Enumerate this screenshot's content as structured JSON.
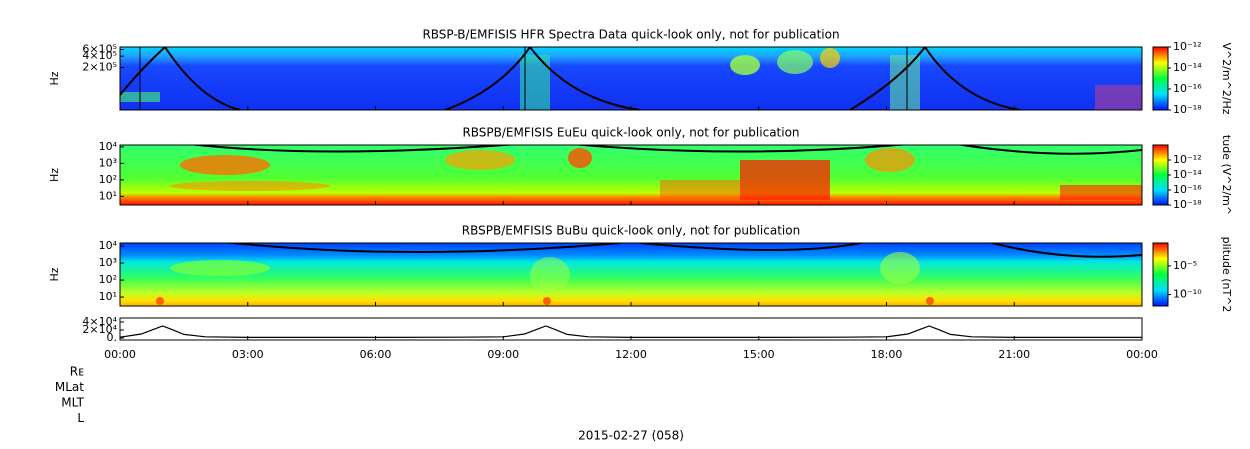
{
  "chart_data": [
    {
      "type": "spectrogram",
      "title": "RBSP-B/EMFISIS  HFR Spectra Data quick-look only, not for publication",
      "ylabel": "Hz",
      "log_y": true,
      "ylim": [
        15000,
        700000
      ],
      "yticks": [
        {
          "value": 200000,
          "label": "2×10⁵"
        },
        {
          "value": 400000,
          "label": "4×10⁵"
        },
        {
          "value": 600000,
          "label": "6×10⁵"
        }
      ],
      "zlabel": "V^2/m^2/Hz",
      "zlim": [
        1e-18,
        1e-12
      ],
      "zticks": [
        {
          "value": 1e-12,
          "label": "10⁻¹²"
        },
        {
          "value": 1e-14,
          "label": "10⁻¹⁴"
        },
        {
          "value": 1e-16,
          "label": "10⁻¹⁶"
        },
        {
          "value": 1e-18,
          "label": "10⁻¹⁸"
        }
      ],
      "colormap": [
        "#0010ff",
        "#00e0ff",
        "#00ff40",
        "#ffff00",
        "#ff0000"
      ]
    },
    {
      "type": "spectrogram",
      "title": "RBSPB/EMFISIS  EuEu quick-look only, not for publication",
      "ylabel": "Hz",
      "log_y": true,
      "ylim": [
        3,
        13000
      ],
      "yticks": [
        {
          "value": 10,
          "label": "10¹"
        },
        {
          "value": 100,
          "label": "10²"
        },
        {
          "value": 1000,
          "label": "10³"
        },
        {
          "value": 10000,
          "label": "10⁴"
        }
      ],
      "zlabel": "tude (V^2/m^",
      "zlim": [
        1e-18,
        1e-10
      ],
      "zticks": [
        {
          "value": 1e-12,
          "label": "10⁻¹²"
        },
        {
          "value": 1e-14,
          "label": "10⁻¹⁴"
        },
        {
          "value": 1e-16,
          "label": "10⁻¹⁶"
        },
        {
          "value": 1e-18,
          "label": "10⁻¹⁸"
        }
      ],
      "colormap": [
        "#0010ff",
        "#00e0ff",
        "#00ff40",
        "#ffff00",
        "#ff0000"
      ]
    },
    {
      "type": "spectrogram",
      "title": "RBSPB/EMFISIS  BuBu quick-look only, not for publication",
      "ylabel": "Hz",
      "log_y": true,
      "ylim": [
        3,
        15000
      ],
      "yticks": [
        {
          "value": 10,
          "label": "10¹"
        },
        {
          "value": 100,
          "label": "10²"
        },
        {
          "value": 1000,
          "label": "10³"
        },
        {
          "value": 10000,
          "label": "10⁴"
        }
      ],
      "zlabel": "plitude (nT^2",
      "zlim": [
        1e-12,
        0.1
      ],
      "zticks": [
        {
          "value": 1e-05,
          "label": "10⁻⁵"
        },
        {
          "value": 1e-10,
          "label": "10⁻¹⁰"
        }
      ],
      "colormap": [
        "#0010ff",
        "#00e0ff",
        "#00ff40",
        "#ffff00",
        "#ff0000"
      ]
    },
    {
      "type": "line",
      "color": "#000000",
      "ylim": [
        -5000,
        50000
      ],
      "yticks": [
        {
          "value": 0,
          "label": "0."
        },
        {
          "value": 20000,
          "label": "2×10⁴"
        },
        {
          "value": 40000,
          "label": "4×10⁴"
        }
      ],
      "xlim": [
        0,
        24
      ],
      "xticks": [
        {
          "value": 0,
          "label": "00:00"
        },
        {
          "value": 3,
          "label": "03:00"
        },
        {
          "value": 6,
          "label": "06:00"
        },
        {
          "value": 9,
          "label": "09:00"
        },
        {
          "value": 12,
          "label": "12:00"
        },
        {
          "value": 15,
          "label": "15:00"
        },
        {
          "value": 18,
          "label": "18:00"
        },
        {
          "value": 21,
          "label": "21:00"
        },
        {
          "value": 24,
          "label": "00:00"
        }
      ],
      "x": [
        0,
        0.5,
        0.8,
        1.0,
        1.2,
        1.5,
        2,
        3,
        6,
        8,
        9,
        9.5,
        9.8,
        10,
        10.2,
        10.5,
        11,
        12,
        15,
        17,
        18,
        18.5,
        18.8,
        19,
        19.2,
        19.5,
        20,
        21,
        24
      ],
      "values": [
        2000,
        10000,
        22000,
        30000,
        22000,
        9000,
        3000,
        1500,
        1500,
        2000,
        3000,
        10000,
        22000,
        30000,
        22000,
        9000,
        3000,
        1500,
        1500,
        2000,
        3000,
        10000,
        22000,
        30000,
        22000,
        9000,
        3000,
        1500,
        1500
      ]
    }
  ],
  "ephemeris_labels": [
    "Rᴇ",
    "MLat",
    "MLT",
    "L"
  ],
  "date_label": "2015-02-27 (058)"
}
